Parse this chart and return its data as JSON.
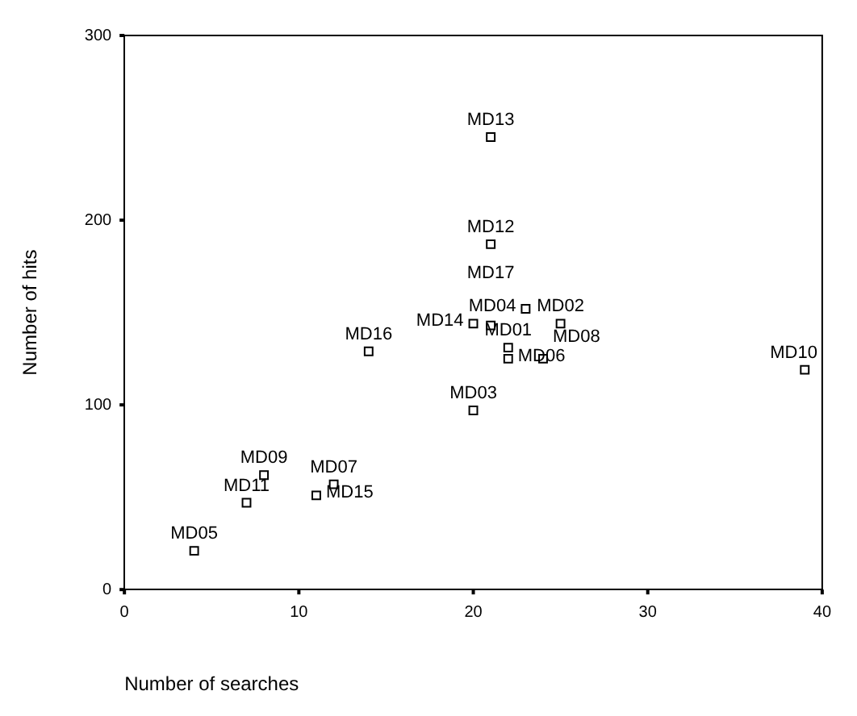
{
  "chart_data": {
    "type": "scatter",
    "xlabel": "Number of searches",
    "ylabel": "Number of hits",
    "x": [
      22,
      25,
      20,
      23,
      4,
      22,
      12,
      24,
      8,
      39,
      7,
      21,
      21,
      20,
      11,
      14,
      21
    ],
    "series": [
      {
        "color": "#000000",
        "values": [
          131,
          144,
          97,
          152,
          21,
          125,
          57,
          125,
          62,
          119,
          47,
          187,
          245,
          144,
          51,
          129,
          143
        ]
      }
    ],
    "annotations": [
      {
        "text": "MD01",
        "x": 22,
        "y": 131
      },
      {
        "text": "MD02",
        "x": 25,
        "y": 144
      },
      {
        "text": "MD03",
        "x": 20,
        "y": 97
      },
      {
        "text": "MD04",
        "x": 23,
        "y": 152
      },
      {
        "text": "MD05",
        "x": 4,
        "y": 21
      },
      {
        "text": "MD06",
        "x": 22,
        "y": 125
      },
      {
        "text": "MD07",
        "x": 12,
        "y": 57
      },
      {
        "text": "MD08",
        "x": 24,
        "y": 125
      },
      {
        "text": "MD09",
        "x": 8,
        "y": 62
      },
      {
        "text": "MD10",
        "x": 39,
        "y": 119
      },
      {
        "text": "MD11",
        "x": 7,
        "y": 47
      },
      {
        "text": "MD12",
        "x": 21,
        "y": 187
      },
      {
        "text": "MD13",
        "x": 21,
        "y": 245
      },
      {
        "text": "MD14",
        "x": 20,
        "y": 144
      },
      {
        "text": "MD15",
        "x": 11,
        "y": 51
      },
      {
        "text": "MD16",
        "x": 14,
        "y": 129
      },
      {
        "text": "MD17",
        "x": 21,
        "y": 143
      }
    ],
    "xlim": [
      0,
      40
    ],
    "xticks": [
      0,
      10,
      20,
      30,
      40
    ],
    "ylim": [
      0,
      300
    ],
    "yticks": [
      0,
      100,
      200,
      300
    ],
    "grid": false,
    "legend": false,
    "marker": "square"
  }
}
